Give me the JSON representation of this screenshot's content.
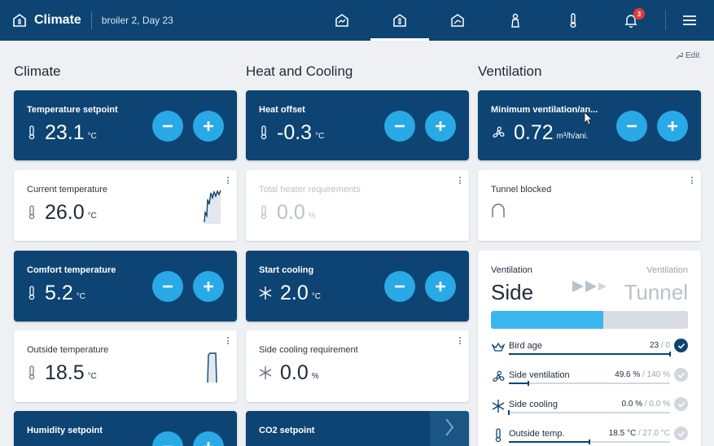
{
  "header": {
    "title": "Climate",
    "subtitle": "broiler 2, Day 23",
    "nav": [
      {
        "icon": "overview-icon"
      },
      {
        "icon": "house-climate-icon"
      },
      {
        "icon": "graph-icon"
      },
      {
        "icon": "person-icon"
      },
      {
        "icon": "thermometer-icon"
      },
      {
        "icon": "bell-icon",
        "badge": "3"
      },
      {
        "icon": "menu-icon"
      }
    ]
  },
  "edit_label": "Edit",
  "columns": {
    "climate": {
      "title": "Climate",
      "cards": [
        {
          "label": "Temperature setpoint",
          "value": "23.1",
          "unit": "°C"
        },
        {
          "label": "Current temperature",
          "value": "26.0",
          "unit": "°C"
        },
        {
          "label": "Comfort temperature",
          "value": "5.2",
          "unit": "°C"
        },
        {
          "label": "Outside temperature",
          "value": "18.5",
          "unit": "°C"
        },
        {
          "label": "Humidity setpoint",
          "value": "",
          "unit": ""
        }
      ]
    },
    "heat": {
      "title": "Heat and Cooling",
      "cards": [
        {
          "label": "Heat offset",
          "value": "-0.3",
          "unit": "°C"
        },
        {
          "label": "Total heater requirements",
          "value": "0.0",
          "unit": "%"
        },
        {
          "label": "Start cooling",
          "value": "2.0",
          "unit": "°C"
        },
        {
          "label": "Side cooling requirement",
          "value": "0.0",
          "unit": "%"
        },
        {
          "label": "CO2 setpoint",
          "value": "",
          "unit": ""
        }
      ]
    },
    "ventilation": {
      "title": "Ventilation",
      "cards": [
        {
          "label": "Minimum ventilation/an...",
          "value": "0.72",
          "unit": "m³/h/ani."
        },
        {
          "label": "Tunnel blocked"
        }
      ],
      "panel": {
        "left_label": "Ventilation",
        "left_mode": "Side",
        "right_label": "Ventilation",
        "right_mode": "Tunnel",
        "progress": 0.57,
        "rows": [
          {
            "label": "Bird age",
            "value": "23",
            "target": "/ 0",
            "fill": 1.0,
            "marker": 1.0,
            "checked": true,
            "icon": "bird-icon"
          },
          {
            "label": "Side ventilation",
            "value": "49.6 %",
            "target": "/ 140 %",
            "fill": 0.12,
            "marker": 0.12,
            "checked": false,
            "icon": "fan-icon"
          },
          {
            "label": "Side cooling",
            "value": "0.0 %",
            "target": "/ 0.0 %",
            "fill": 0.0,
            "marker": 0.0,
            "checked": false,
            "icon": "snowflake-icon"
          },
          {
            "label": "Outside temp.",
            "value": "18.5 °C",
            "target": "/ 27.0 °C",
            "fill": 0.5,
            "marker": 0.5,
            "checked": false,
            "icon": "thermometer-icon"
          }
        ]
      }
    }
  },
  "colors": {
    "primary": "#0d4473",
    "accent": "#29a9e6",
    "progress": "#3ab7ee"
  }
}
